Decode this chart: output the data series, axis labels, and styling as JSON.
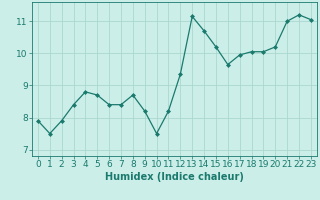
{
  "x": [
    0,
    1,
    2,
    3,
    4,
    5,
    6,
    7,
    8,
    9,
    10,
    11,
    12,
    13,
    14,
    15,
    16,
    17,
    18,
    19,
    20,
    21,
    22,
    23
  ],
  "y": [
    7.9,
    7.5,
    7.9,
    8.4,
    8.8,
    8.7,
    8.4,
    8.4,
    8.7,
    8.2,
    7.5,
    8.2,
    9.35,
    11.15,
    10.7,
    10.2,
    9.65,
    9.95,
    10.05,
    10.05,
    10.2,
    11.0,
    11.2,
    11.05
  ],
  "line_color": "#1a7a6e",
  "marker": "D",
  "marker_size": 2.0,
  "bg_color": "#cceee8",
  "grid_color": "#aad8d0",
  "xlabel": "Humidex (Indice chaleur)",
  "ylim": [
    6.8,
    11.6
  ],
  "xlim": [
    -0.5,
    23.5
  ],
  "yticks": [
    7,
    8,
    9,
    10,
    11
  ],
  "xticks": [
    0,
    1,
    2,
    3,
    4,
    5,
    6,
    7,
    8,
    9,
    10,
    11,
    12,
    13,
    14,
    15,
    16,
    17,
    18,
    19,
    20,
    21,
    22,
    23
  ],
  "tick_color": "#1a7a6e",
  "label_fontsize": 7,
  "tick_fontsize": 6.5
}
